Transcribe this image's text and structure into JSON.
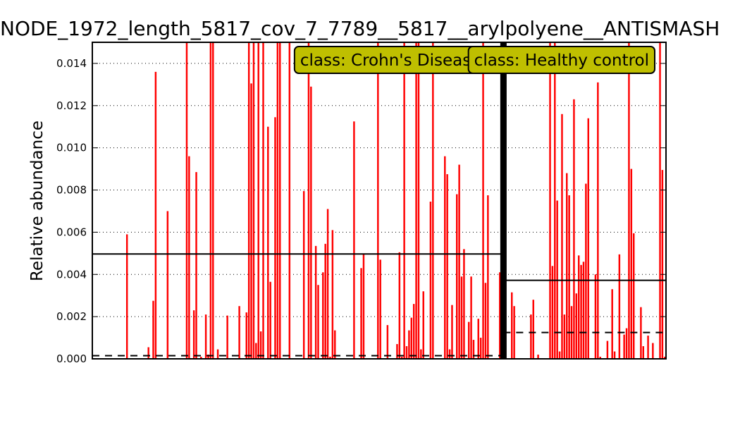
{
  "chart_data": {
    "type": "bar",
    "title": "NODE_1972_length_5817_cov_7_7789__5817__arylpolyene__ANTISMASH",
    "xlabel": "",
    "ylabel": "Relative abundance",
    "ylim": [
      0,
      0.015
    ],
    "yticks": [
      "0.000",
      "0.002",
      "0.004",
      "0.006",
      "0.008",
      "0.010",
      "0.012",
      "0.014"
    ],
    "grid": "horizontal-dotted",
    "colors": {
      "bar": "#ff0000",
      "divider": "#000000",
      "class_box": "#bfbf00",
      "mean": "#000000",
      "median": "#000000"
    },
    "groups": [
      {
        "name": "class: Crohn's Disease",
        "mean": 0.00497,
        "median": 0.00015,
        "values": [
          0,
          0,
          0,
          0,
          0,
          0,
          0,
          0,
          0,
          0,
          0,
          0,
          0,
          0,
          0.0059,
          0,
          0,
          0,
          0,
          0,
          0,
          0,
          0,
          0.00055,
          0,
          0.00275,
          0.0136,
          0,
          0,
          0,
          0,
          0.007,
          0,
          0,
          0,
          0,
          0,
          0,
          0,
          0.015,
          0.0096,
          0,
          0.0023,
          0.00885,
          0,
          0.0001,
          0,
          0.0021,
          0.0002,
          0.015,
          0.015,
          0,
          0.00045,
          0,
          0,
          0,
          0.00205,
          0,
          0,
          0,
          0,
          0.0025,
          0,
          0,
          0.0022,
          0.015,
          0.01305,
          0.015,
          0.00075,
          0.015,
          0.0013,
          0.015,
          0,
          0.011,
          0.00365,
          0,
          0.01145,
          0.015,
          0.015,
          0,
          0,
          0,
          0.015,
          0,
          0,
          0,
          0,
          0,
          0.00795,
          0,
          0.015,
          0.0129,
          0,
          0.00535,
          0.0035,
          0,
          0.0041,
          0.00545,
          0.0071,
          0.0001,
          0.0061,
          0.00135,
          0,
          0,
          0,
          0,
          0,
          0,
          0,
          0.01125,
          0,
          0,
          0.0043,
          0.00495,
          0,
          0,
          0,
          0,
          0,
          0.015,
          0.0047,
          0,
          0,
          0.0016,
          0,
          0,
          0,
          0.0007,
          0.00505,
          0.0001,
          0.015,
          0.0006,
          0.00135,
          0.00195,
          0.0026,
          0.015,
          0.015,
          0.00045,
          0.0032,
          0,
          0,
          0.00745,
          0.015,
          0,
          0,
          0,
          0,
          0.0096,
          0.00875,
          0.00045,
          0.00255,
          0,
          0.0078,
          0.0092,
          0.0039,
          0.0052,
          0,
          0.00175,
          0.0039,
          0.0009,
          0,
          0.0019,
          0.001,
          0.015,
          0.0036,
          0.00775,
          0,
          0,
          0,
          0,
          0.0041,
          0
        ]
      },
      {
        "name": "class: Healthy control",
        "mean": 0.00372,
        "median": 0.00125,
        "values": [
          0,
          0,
          0,
          0.00315,
          0.0025,
          0,
          0,
          0,
          0,
          0,
          0,
          0.0021,
          0.0028,
          0,
          0.0002,
          0,
          0,
          0,
          0,
          0.015,
          0.0044,
          0.015,
          0.0075,
          0.00035,
          0.0116,
          0.0021,
          0.0088,
          0.00775,
          0.0025,
          0.0123,
          0.0031,
          0.0049,
          0.00445,
          0.0046,
          0.0083,
          0.0114,
          0,
          0,
          0.004,
          0.0131,
          0.0001,
          0,
          0,
          0.00085,
          0,
          0.0033,
          0.00035,
          0,
          0.00495,
          0,
          0.00115,
          0.00145,
          0.015,
          0.009,
          0.00595,
          0,
          0,
          0.00245,
          0.0006,
          0,
          0.0011,
          0,
          0.00075,
          0,
          0,
          0.015,
          0.00895,
          0.0001
        ]
      }
    ]
  }
}
